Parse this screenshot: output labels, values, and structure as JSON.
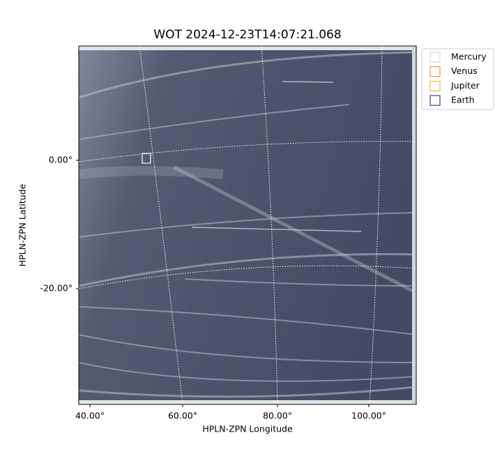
{
  "chart_data": {
    "type": "image",
    "title": "WOT 2024-12-23T14:07:21.068",
    "xlabel": "HPLN-ZPN Longitude",
    "ylabel": "HPLN-ZPN Latitude",
    "xticks": [
      {
        "value": 40,
        "label": "40.00°"
      },
      {
        "value": 60,
        "label": "60.00°"
      },
      {
        "value": 80,
        "label": "80.00°"
      },
      {
        "value": 100,
        "label": "100.00°"
      }
    ],
    "yticks": [
      {
        "value": 0,
        "label": "0.00°"
      },
      {
        "value": -20,
        "label": "-20.00°"
      }
    ],
    "grid": true,
    "legend_position": "outside upper right",
    "series": [
      {
        "name": "Mercury",
        "color": "#d3d3d3"
      },
      {
        "name": "Venus",
        "color": "#e07b39"
      },
      {
        "name": "Jupiter",
        "color": "#e8b020"
      },
      {
        "name": "Earth",
        "color": "#1a1a6e"
      }
    ]
  }
}
